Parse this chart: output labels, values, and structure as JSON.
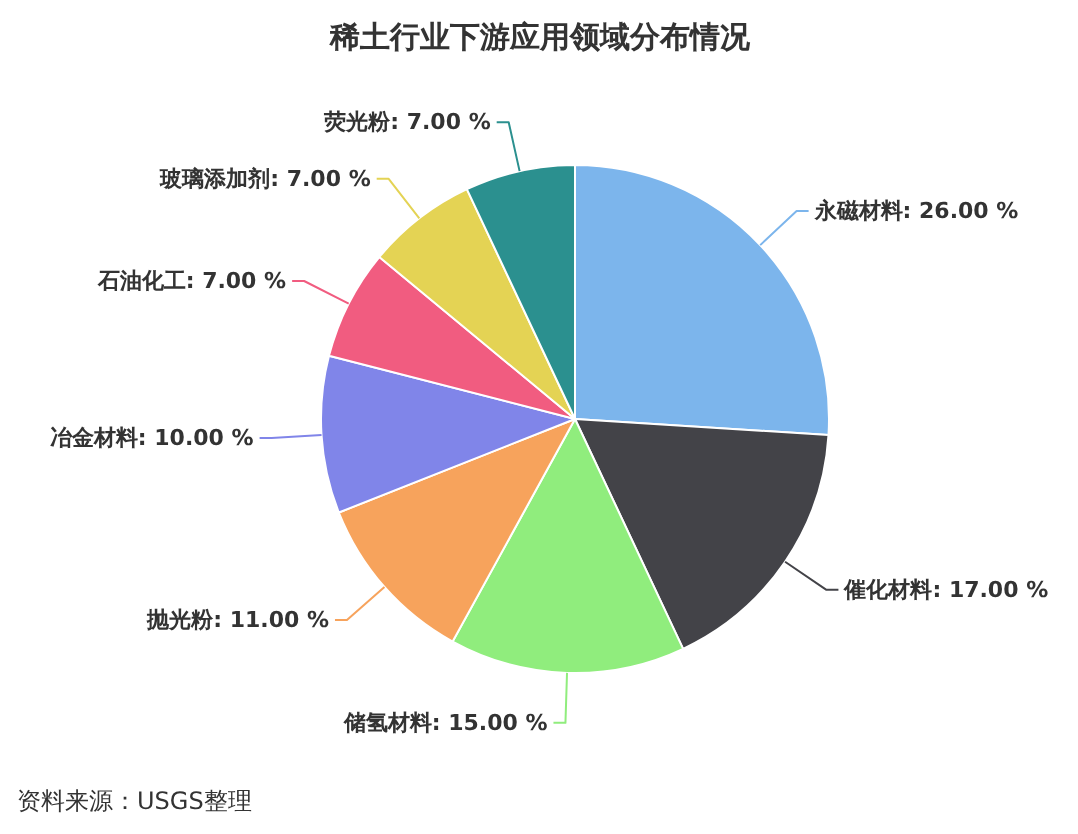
{
  "chart_data": {
    "type": "pie",
    "title": "稀土行业下游应用领域分布情况",
    "categories": [
      "永磁材料",
      "催化材料",
      "储氢材料",
      "抛光粉",
      "冶金材料",
      "石油化工",
      "玻璃添加剂",
      "荧光粉"
    ],
    "values": [
      26,
      17,
      15,
      11,
      10,
      7,
      7,
      7
    ],
    "colors": [
      "#7cb5ec",
      "#434348",
      "#90ed7d",
      "#f7a35c",
      "#8085e9",
      "#f15c80",
      "#e4d354",
      "#2b908f"
    ],
    "value_labels": [
      "26.00 %",
      "17.00 %",
      "15.00 %",
      "11.00 %",
      "10.00 %",
      "7.00 %",
      "7.00 %",
      "7.00 %"
    ],
    "annotations": [
      "资料来源：USGS整理"
    ]
  }
}
